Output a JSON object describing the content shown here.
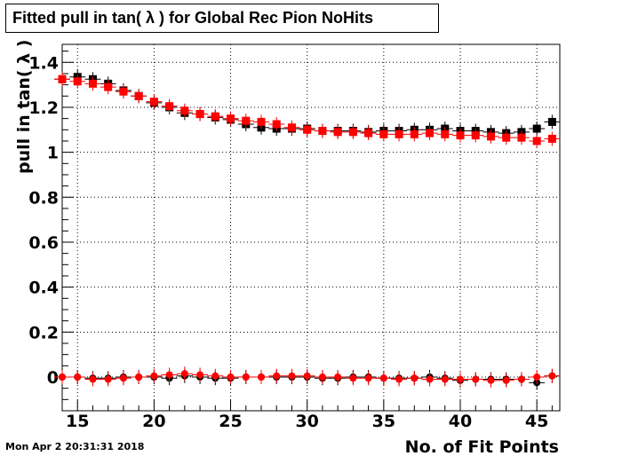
{
  "chart_data": {
    "type": "scatter",
    "title": "Fitted pull in tan( λ ) for Global Rec Pion NoHits",
    "xlabel": "No. of Fit Points",
    "ylabel": "pull in tan( λ )",
    "xlim": [
      14,
      46.5
    ],
    "ylim": [
      -0.15,
      1.48
    ],
    "x_ticks": [
      15,
      20,
      25,
      30,
      35,
      40,
      45
    ],
    "y_ticks": [
      0,
      0.2,
      0.4,
      0.6,
      0.8,
      1,
      1.2,
      1.4
    ],
    "grid": true,
    "x": [
      14,
      15,
      16,
      17,
      18,
      19,
      20,
      21,
      22,
      23,
      24,
      25,
      26,
      27,
      28,
      29,
      30,
      31,
      32,
      33,
      34,
      35,
      36,
      37,
      38,
      39,
      40,
      41,
      42,
      43,
      44,
      45,
      46
    ],
    "series": [
      {
        "color": "#000000",
        "marker": "square",
        "values": [
          1.325,
          1.335,
          1.325,
          1.305,
          1.275,
          1.25,
          1.22,
          1.2,
          1.175,
          1.17,
          1.155,
          1.145,
          1.125,
          1.11,
          1.105,
          1.105,
          1.105,
          1.095,
          1.095,
          1.095,
          1.09,
          1.095,
          1.095,
          1.1,
          1.1,
          1.105,
          1.095,
          1.095,
          1.09,
          1.085,
          1.09,
          1.105,
          1.135
        ]
      },
      {
        "color": "#ff0000",
        "marker": "square",
        "values": [
          1.325,
          1.315,
          1.305,
          1.29,
          1.27,
          1.25,
          1.225,
          1.205,
          1.185,
          1.17,
          1.16,
          1.15,
          1.14,
          1.135,
          1.125,
          1.11,
          1.1,
          1.095,
          1.09,
          1.09,
          1.085,
          1.08,
          1.08,
          1.08,
          1.085,
          1.08,
          1.075,
          1.075,
          1.07,
          1.065,
          1.065,
          1.05,
          1.06
        ]
      },
      {
        "color": "#000000",
        "marker": "circle",
        "values": [
          0.0,
          0.0,
          -0.005,
          -0.005,
          0.0,
          0.0,
          0.0,
          -0.005,
          0.005,
          0.0,
          -0.005,
          -0.005,
          0.0,
          0.0,
          0.0,
          0.0,
          0.0,
          -0.005,
          -0.005,
          0.0,
          0.0,
          -0.005,
          -0.005,
          -0.005,
          0.0,
          -0.005,
          -0.015,
          -0.01,
          -0.01,
          -0.01,
          -0.01,
          -0.025,
          0.005
        ]
      },
      {
        "color": "#ff0000",
        "marker": "circle",
        "values": [
          0.0,
          0.0,
          -0.01,
          -0.01,
          -0.005,
          0.0,
          0.005,
          0.01,
          0.015,
          0.01,
          0.005,
          0.0,
          0.0,
          0.0,
          0.005,
          0.005,
          0.005,
          0.0,
          0.0,
          -0.005,
          -0.005,
          -0.005,
          -0.01,
          -0.005,
          -0.01,
          -0.01,
          -0.01,
          -0.01,
          -0.015,
          -0.015,
          -0.01,
          0.0,
          0.005
        ]
      }
    ]
  },
  "footer": {
    "date": "Mon Apr  2 20:31:31 2018"
  }
}
